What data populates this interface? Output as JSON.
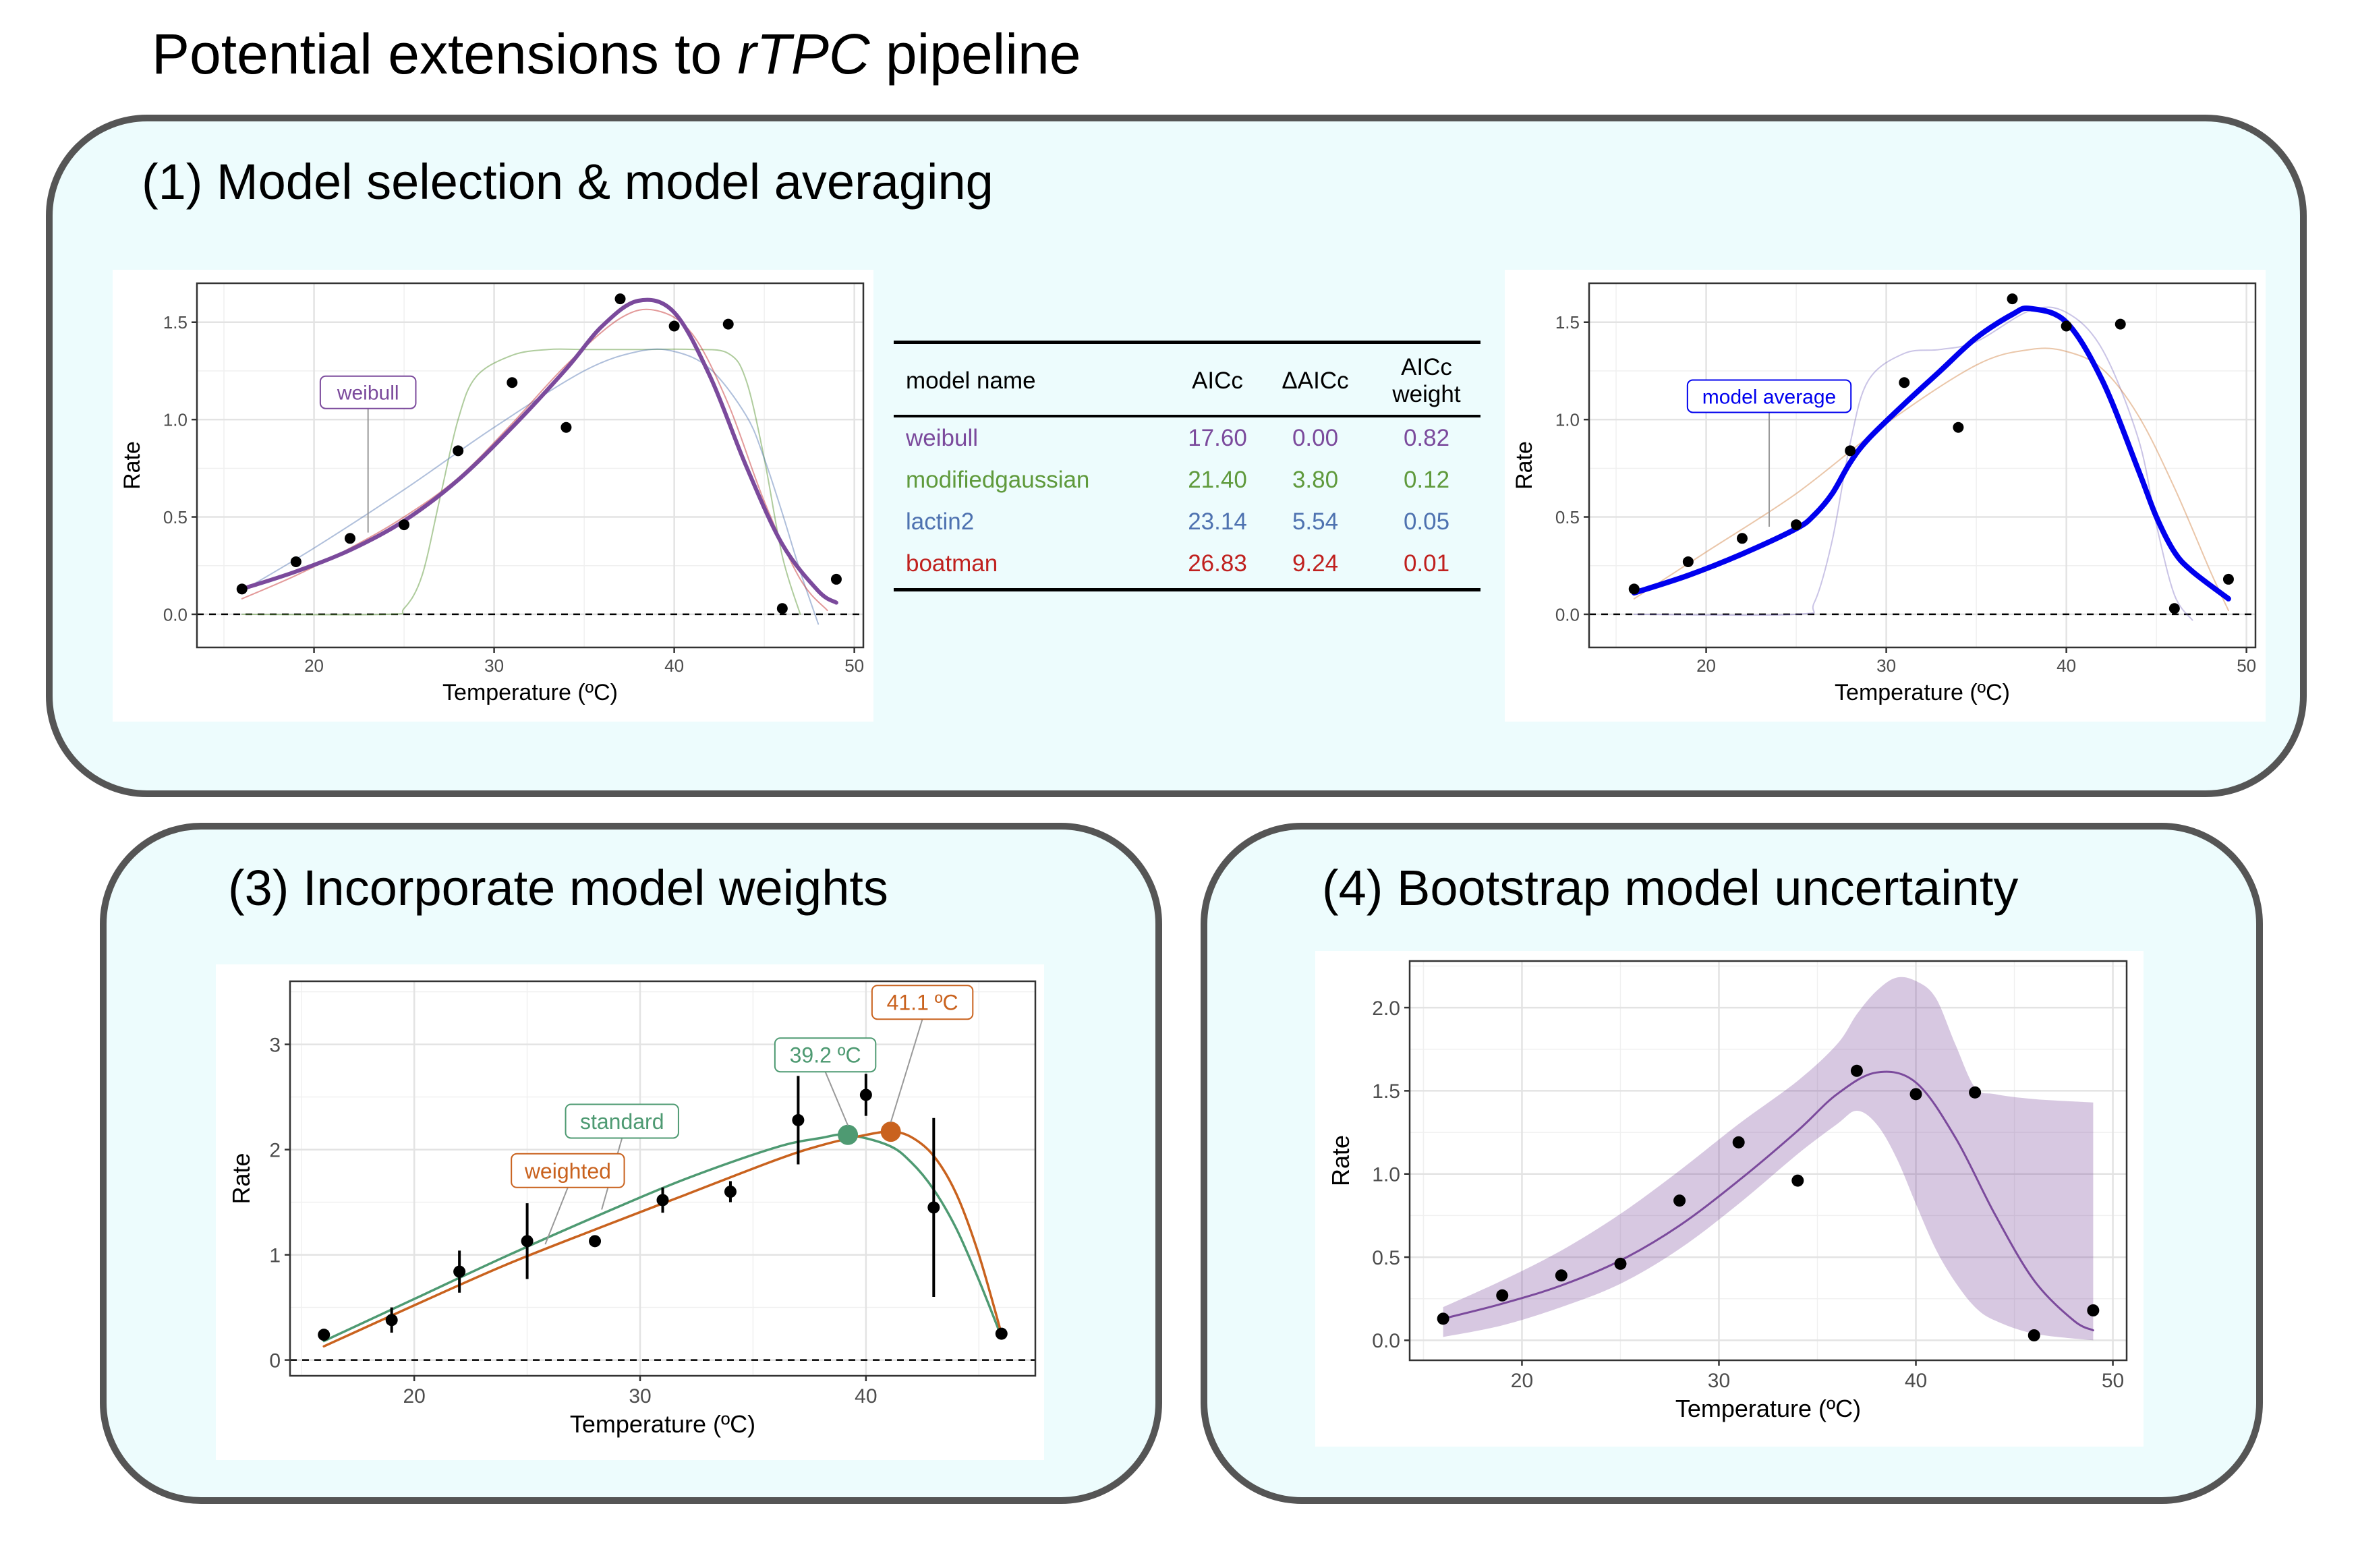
{
  "page": {
    "title_prefix": "Potential extensions to ",
    "title_italic": "rTPC",
    "title_suffix": " pipeline"
  },
  "panels": {
    "p1": {
      "title": "(1) Model selection & model averaging"
    },
    "p3": {
      "title": "(3) Incorporate model weights"
    },
    "p4": {
      "title": "(4) Bootstrap model uncertainty"
    }
  },
  "table": {
    "headers": {
      "name": "model name",
      "aicc": "AICc",
      "daicc": "ΔAICc",
      "weight_line1": "AICc",
      "weight_line2": "weight"
    },
    "rows": [
      {
        "name": "weibull",
        "aicc": "17.60",
        "daicc": "0.00",
        "weight": "0.82",
        "color": "#7b4a9c"
      },
      {
        "name": "modifiedgaussian",
        "aicc": "21.40",
        "daicc": "3.80",
        "weight": "0.12",
        "color": "#5f9a3c"
      },
      {
        "name": "lactin2",
        "aicc": "23.14",
        "daicc": "5.54",
        "weight": "0.05",
        "color": "#4e72b0"
      },
      {
        "name": "boatman",
        "aicc": "26.83",
        "daicc": "9.24",
        "weight": "0.01",
        "color": "#c0201e"
      }
    ]
  },
  "chart_data": [
    {
      "id": "plot1",
      "type": "line",
      "xlabel": "Temperature (ºC)",
      "ylabel": "Rate",
      "xlim": [
        13.5,
        50.5
      ],
      "ylim": [
        -0.17,
        1.7
      ],
      "xticks": [
        20,
        30,
        40,
        50
      ],
      "yticks": [
        0.0,
        0.5,
        1.0,
        1.5
      ],
      "ytick_labels": [
        "0.0",
        "0.5",
        "1.0",
        "1.5"
      ],
      "points": {
        "x": [
          16,
          19,
          22,
          25,
          28,
          31,
          34,
          37,
          40,
          43,
          46,
          49
        ],
        "y": [
          0.13,
          0.27,
          0.39,
          0.46,
          0.84,
          1.19,
          0.96,
          1.62,
          1.48,
          1.49,
          0.03,
          0.18
        ]
      },
      "reference_line_y": 0,
      "label": {
        "text": "weibull",
        "color": "#7b4a9c",
        "x": 23,
        "y": 1.14,
        "target_x": 23,
        "target_y": 0.42
      },
      "series": [
        {
          "name": "weibull",
          "color": "#7b4a9c",
          "width": 6,
          "opacity": 1,
          "x": [
            16,
            19,
            22,
            25,
            28,
            31,
            34,
            36,
            38,
            40,
            42,
            44,
            46,
            48,
            49
          ],
          "y": [
            0.13,
            0.22,
            0.33,
            0.48,
            0.69,
            0.96,
            1.26,
            1.48,
            1.61,
            1.55,
            1.22,
            0.76,
            0.36,
            0.12,
            0.06
          ]
        },
        {
          "name": "modifiedgaussian",
          "color": "#5f9a3c",
          "width": 2,
          "opacity": 0.5,
          "x": [
            16,
            24,
            25,
            26,
            27,
            28,
            29,
            31,
            33,
            35,
            38,
            41,
            43,
            44,
            45,
            46,
            47
          ],
          "y": [
            0.0,
            0.0,
            0.03,
            0.2,
            0.6,
            1.0,
            1.22,
            1.33,
            1.36,
            1.36,
            1.36,
            1.36,
            1.34,
            1.2,
            0.8,
            0.3,
            0.0
          ]
        },
        {
          "name": "lactin2",
          "color": "#4e72b0",
          "width": 2,
          "opacity": 0.45,
          "x": [
            16,
            20,
            25,
            30,
            35,
            38,
            40,
            42,
            44,
            45,
            46,
            47,
            48
          ],
          "y": [
            0.12,
            0.34,
            0.64,
            0.96,
            1.25,
            1.35,
            1.35,
            1.26,
            1.02,
            0.8,
            0.52,
            0.22,
            -0.05
          ]
        },
        {
          "name": "boatman",
          "color": "#c0201e",
          "width": 2,
          "opacity": 0.45,
          "x": [
            16,
            19,
            22,
            25,
            28,
            31,
            34,
            37,
            39,
            41,
            43,
            45,
            47,
            48.5
          ],
          "y": [
            0.08,
            0.2,
            0.34,
            0.5,
            0.7,
            0.98,
            1.28,
            1.52,
            1.56,
            1.44,
            1.08,
            0.58,
            0.18,
            0.02
          ]
        }
      ]
    },
    {
      "id": "plot2",
      "type": "line",
      "xlabel": "Temperature (ºC)",
      "ylabel": "Rate",
      "xlim": [
        13.5,
        50.5
      ],
      "ylim": [
        -0.17,
        1.7
      ],
      "xticks": [
        20,
        30,
        40,
        50
      ],
      "yticks": [
        0.0,
        0.5,
        1.0,
        1.5
      ],
      "ytick_labels": [
        "0.0",
        "0.5",
        "1.0",
        "1.5"
      ],
      "points": {
        "x": [
          16,
          19,
          22,
          25,
          28,
          31,
          34,
          37,
          40,
          43,
          46,
          49
        ],
        "y": [
          0.13,
          0.27,
          0.39,
          0.46,
          0.84,
          1.19,
          0.96,
          1.62,
          1.48,
          1.49,
          0.03,
          0.18
        ]
      },
      "reference_line_y": 0,
      "label": {
        "text": "model average",
        "color": "#0000ee",
        "x": 23.5,
        "y": 1.12,
        "target_x": 23.5,
        "target_y": 0.45
      },
      "series": [
        {
          "name": "model average",
          "color": "#0000ee",
          "width": 8,
          "opacity": 1,
          "x": [
            16,
            19,
            22,
            25,
            26,
            27,
            28,
            29,
            31,
            33,
            35,
            37,
            38,
            40,
            42,
            44,
            45,
            46,
            47,
            49
          ],
          "y": [
            0.11,
            0.2,
            0.31,
            0.44,
            0.51,
            0.62,
            0.78,
            0.9,
            1.08,
            1.25,
            1.42,
            1.54,
            1.57,
            1.5,
            1.2,
            0.74,
            0.5,
            0.32,
            0.22,
            0.08
          ]
        },
        {
          "name": "modifiedgaussian",
          "color": "#7a6cc0",
          "width": 2,
          "opacity": 0.4,
          "x": [
            16,
            25,
            26,
            27,
            28,
            29,
            31,
            33,
            35,
            38,
            40,
            42,
            44,
            45,
            46,
            47
          ],
          "y": [
            0.0,
            0.0,
            0.06,
            0.38,
            0.88,
            1.2,
            1.34,
            1.36,
            1.4,
            1.56,
            1.55,
            1.36,
            0.9,
            0.46,
            0.1,
            -0.03
          ]
        },
        {
          "name": "boatman",
          "color": "#d08040",
          "width": 2,
          "opacity": 0.45,
          "x": [
            16,
            20,
            25,
            30,
            35,
            38,
            40,
            42,
            44,
            46,
            48,
            49
          ],
          "y": [
            0.08,
            0.32,
            0.62,
            0.98,
            1.28,
            1.36,
            1.35,
            1.26,
            1.02,
            0.65,
            0.22,
            0.02
          ]
        }
      ]
    },
    {
      "id": "plot3",
      "type": "line",
      "xlabel": "Temperature (ºC)",
      "ylabel": "Rate",
      "xlim": [
        14.5,
        47.5
      ],
      "ylim": [
        -0.15,
        3.6
      ],
      "xticks": [
        20,
        30,
        40
      ],
      "yticks": [
        0,
        1,
        2,
        3
      ],
      "ytick_labels": [
        "0",
        "1",
        "2",
        "3"
      ],
      "points": {
        "x": [
          16,
          19,
          22,
          25,
          28,
          31,
          34,
          37,
          40,
          43,
          46
        ],
        "y": [
          0.24,
          0.38,
          0.84,
          1.13,
          1.13,
          1.52,
          1.6,
          2.28,
          2.52,
          1.45,
          0.25
        ],
        "err": [
          0,
          0.12,
          0.2,
          0.36,
          0,
          0.12,
          0.1,
          0.42,
          0.2,
          0.85,
          0
        ]
      },
      "reference_line_y": 0,
      "series": [
        {
          "name": "standard",
          "color": "#4e9a72",
          "width": 3.5,
          "opacity": 1,
          "x": [
            16,
            20,
            24,
            28,
            32,
            36,
            38,
            39.2,
            41,
            42,
            43,
            44,
            45,
            46
          ],
          "y": [
            0.18,
            0.58,
            0.98,
            1.36,
            1.72,
            2.02,
            2.11,
            2.14,
            2.04,
            1.88,
            1.62,
            1.25,
            0.76,
            0.22
          ]
        },
        {
          "name": "weighted",
          "color": "#c9621e",
          "width": 3.5,
          "opacity": 1,
          "x": [
            16,
            20,
            24,
            28,
            32,
            36,
            38,
            40,
            41.1,
            42,
            43,
            44,
            45,
            46
          ],
          "y": [
            0.13,
            0.52,
            0.9,
            1.24,
            1.57,
            1.9,
            2.04,
            2.14,
            2.17,
            2.12,
            1.94,
            1.58,
            1.0,
            0.25
          ]
        }
      ],
      "optima": [
        {
          "x": 39.2,
          "y": 2.14,
          "color": "#4e9a72",
          "label": "39.2 ºC",
          "lx": 38.2,
          "ly": 2.9
        },
        {
          "x": 41.1,
          "y": 2.17,
          "color": "#c9621e",
          "label": "41.1 ºC",
          "lx": 42.5,
          "ly": 3.4
        }
      ],
      "labels": [
        {
          "text": "standard",
          "color": "#4e9a72",
          "x": 29.2,
          "y": 2.27,
          "target_x": 28.3,
          "target_y": 1.43
        },
        {
          "text": "weighted",
          "color": "#c9621e",
          "x": 26.8,
          "y": 1.8,
          "target_x": 25.8,
          "target_y": 1.1
        }
      ]
    },
    {
      "id": "plot4",
      "type": "area",
      "xlabel": "Temperature (ºC)",
      "ylabel": "Rate",
      "xlim": [
        14.3,
        50.7
      ],
      "ylim": [
        -0.12,
        2.28
      ],
      "xticks": [
        20,
        30,
        40,
        50
      ],
      "yticks": [
        0.0,
        0.5,
        1.0,
        1.5,
        2.0
      ],
      "ytick_labels": [
        "0.0",
        "0.5",
        "1.0",
        "1.5",
        "2.0"
      ],
      "points": {
        "x": [
          16,
          19,
          22,
          25,
          28,
          31,
          34,
          37,
          40,
          43,
          46,
          49
        ],
        "y": [
          0.13,
          0.27,
          0.39,
          0.46,
          0.84,
          1.19,
          0.96,
          1.62,
          1.48,
          1.49,
          0.03,
          0.18
        ]
      },
      "band": {
        "color": "#7b4a9c",
        "opacity": 0.3,
        "x": [
          16,
          19,
          22,
          25,
          28,
          31,
          34,
          36,
          37,
          38,
          39,
          40,
          41,
          42,
          43,
          44,
          46,
          49
        ],
        "lower": [
          0.02,
          0.09,
          0.2,
          0.34,
          0.55,
          0.82,
          1.12,
          1.3,
          1.38,
          1.3,
          1.1,
          0.82,
          0.55,
          0.35,
          0.2,
          0.12,
          0.04,
          0.0
        ],
        "upper": [
          0.2,
          0.36,
          0.54,
          0.76,
          1.02,
          1.3,
          1.56,
          1.78,
          1.96,
          2.1,
          2.18,
          2.16,
          2.06,
          1.78,
          1.52,
          1.48,
          1.45,
          1.43
        ]
      },
      "series": [
        {
          "name": "fit",
          "color": "#7b4a9c",
          "width": 3,
          "opacity": 1,
          "x": [
            16,
            19,
            22,
            25,
            28,
            31,
            34,
            36,
            38,
            40,
            42,
            44,
            46,
            48,
            49
          ],
          "y": [
            0.13,
            0.22,
            0.33,
            0.48,
            0.69,
            0.96,
            1.26,
            1.48,
            1.61,
            1.55,
            1.22,
            0.76,
            0.36,
            0.12,
            0.06
          ]
        }
      ]
    }
  ]
}
